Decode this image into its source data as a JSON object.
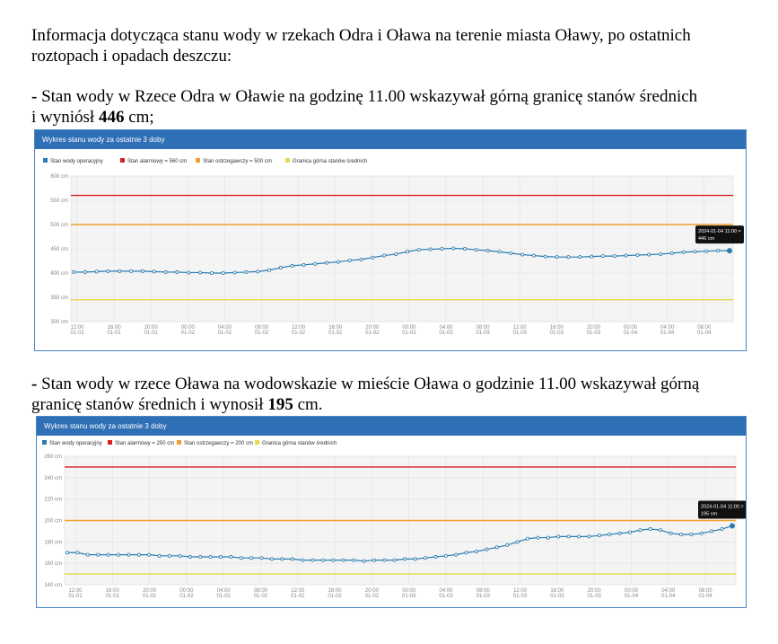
{
  "intro": {
    "text": "Informacja dotycząca stanu wody w rzekach Odra i Oława na terenie miasta Oławy, po ostatnich roztopach i opadach deszczu:"
  },
  "odra": {
    "dash": "- ",
    "text_before": "Stan wody w Rzece Odra w Oławie na godzinę 11.00 wskazywał górną granicę stanów średnich\ni wyniósł ",
    "value": "446",
    "text_after": " cm;"
  },
  "olawa": {
    "dash": "- ",
    "text_before": "Stan wody w rzece Oława na wodowskazie w mieście Oława o godzinie 11.00 wskazywał górną\n  granicę stanów średnich i wynosił ",
    "value": "195",
    "text_after": " cm."
  },
  "colors": {
    "panel_header": "#2f6fb6",
    "series": "#2b7bb0",
    "alarm": "#d62020",
    "warning": "#f0a030",
    "upper_mid": "#e8d84a"
  },
  "chart_data": [
    {
      "type": "line",
      "panel_title": "Wykres stanu wody za ostatnie 3 doby",
      "legend": [
        {
          "label": "Stan wody operacyjny",
          "color": "#2b7bb0"
        },
        {
          "label": "Stan alarmowy = 560 cm",
          "color": "#d62020"
        },
        {
          "label": "Stan ostrzegawczy = 500 cm",
          "color": "#f0a030"
        },
        {
          "label": "Granica górna stanów średnich",
          "color": "#e8d84a"
        }
      ],
      "ylim": [
        300,
        600
      ],
      "y_ticks": [
        "300 cm",
        "350 cm",
        "400 cm",
        "450 cm",
        "500 cm",
        "550 cm",
        "600 cm"
      ],
      "x_ticks": [
        [
          "12:00",
          "01-01"
        ],
        [
          "16:00",
          "01-01"
        ],
        [
          "20:00",
          "01-01"
        ],
        [
          "00:00",
          "01-02"
        ],
        [
          "04:00",
          "01-02"
        ],
        [
          "08:00",
          "01-02"
        ],
        [
          "12:00",
          "01-02"
        ],
        [
          "16:00",
          "01-02"
        ],
        [
          "20:00",
          "01-02"
        ],
        [
          "00:00",
          "01-03"
        ],
        [
          "04:00",
          "01-03"
        ],
        [
          "08:00",
          "01-03"
        ],
        [
          "12:00",
          "01-03"
        ],
        [
          "16:00",
          "01-03"
        ],
        [
          "20:00",
          "01-03"
        ],
        [
          "00:00",
          "01-04"
        ],
        [
          "04:00",
          "01-04"
        ],
        [
          "08:00",
          "01-04"
        ]
      ],
      "thresholds": [
        {
          "name": "Stan alarmowy",
          "value": 560,
          "color": "#d62020"
        },
        {
          "name": "Stan ostrzegawczy",
          "value": 500,
          "color": "#f0a030"
        },
        {
          "name": "Granica górna stanów średnich",
          "value": 345,
          "color": "#e8d84a"
        }
      ],
      "tooltip": [
        "2024-01-04 11:00 =",
        "446 cm"
      ],
      "series": [
        {
          "name": "Stan wody operacyjny",
          "values": [
            402,
            402,
            403,
            404,
            404,
            404,
            404,
            403,
            402,
            402,
            401,
            401,
            400,
            400,
            401,
            402,
            403,
            406,
            411,
            415,
            417,
            419,
            421,
            423,
            426,
            428,
            432,
            436,
            439,
            444,
            448,
            449,
            450,
            451,
            450,
            448,
            446,
            444,
            441,
            438,
            436,
            434,
            433,
            433,
            433,
            434,
            435,
            435,
            436,
            437,
            438,
            439,
            441,
            443,
            444,
            445,
            446,
            446
          ]
        }
      ]
    },
    {
      "type": "line",
      "panel_title": "Wykres stanu wody za ostatnie 3 doby",
      "legend": [
        {
          "label": "Stan wody operacyjny",
          "color": "#2b7bb0"
        },
        {
          "label": "Stan alarmowy = 250 cm",
          "color": "#d62020"
        },
        {
          "label": "Stan ostrzegawczy = 200 cm",
          "color": "#f0a030"
        },
        {
          "label": "Granica górna stanów średnich",
          "color": "#e8d84a"
        }
      ],
      "ylim": [
        140,
        260
      ],
      "y_ticks": [
        "140 cm",
        "160 cm",
        "180 cm",
        "200 cm",
        "220 cm",
        "240 cm",
        "260 cm"
      ],
      "x_ticks": [
        [
          "12:00",
          "01-01"
        ],
        [
          "16:00",
          "01-01"
        ],
        [
          "20:00",
          "01-01"
        ],
        [
          "00:00",
          "01-02"
        ],
        [
          "04:00",
          "01-02"
        ],
        [
          "08:00",
          "01-02"
        ],
        [
          "12:00",
          "01-02"
        ],
        [
          "16:00",
          "01-02"
        ],
        [
          "20:00",
          "01-02"
        ],
        [
          "00:00",
          "01-03"
        ],
        [
          "04:00",
          "01-03"
        ],
        [
          "08:00",
          "01-03"
        ],
        [
          "12:00",
          "01-03"
        ],
        [
          "16:00",
          "01-03"
        ],
        [
          "20:00",
          "01-03"
        ],
        [
          "00:00",
          "01-04"
        ],
        [
          "04:00",
          "01-04"
        ],
        [
          "08:00",
          "01-04"
        ]
      ],
      "thresholds": [
        {
          "name": "Stan alarmowy",
          "value": 250,
          "color": "#d62020"
        },
        {
          "name": "Stan ostrzegawczy",
          "value": 200,
          "color": "#f0a030"
        },
        {
          "name": "Granica górna stanów średnich",
          "value": 150,
          "color": "#e8d84a"
        }
      ],
      "tooltip": [
        "2024-01-04 11:00 =",
        "195 cm"
      ],
      "series": [
        {
          "name": "Stan wody operacyjny",
          "values": [
            170,
            170,
            168,
            168,
            168,
            168,
            168,
            168,
            168,
            167,
            167,
            167,
            166,
            166,
            166,
            166,
            166,
            165,
            165,
            165,
            164,
            164,
            164,
            163,
            163,
            163,
            163,
            163,
            163,
            162,
            163,
            163,
            163,
            164,
            164,
            165,
            166,
            167,
            168,
            170,
            171,
            173,
            175,
            177,
            180,
            183,
            184,
            184,
            185,
            185,
            185,
            185,
            186,
            187,
            188,
            189,
            191,
            192,
            191,
            188,
            187,
            187,
            188,
            190,
            192,
            195
          ]
        }
      ]
    }
  ]
}
